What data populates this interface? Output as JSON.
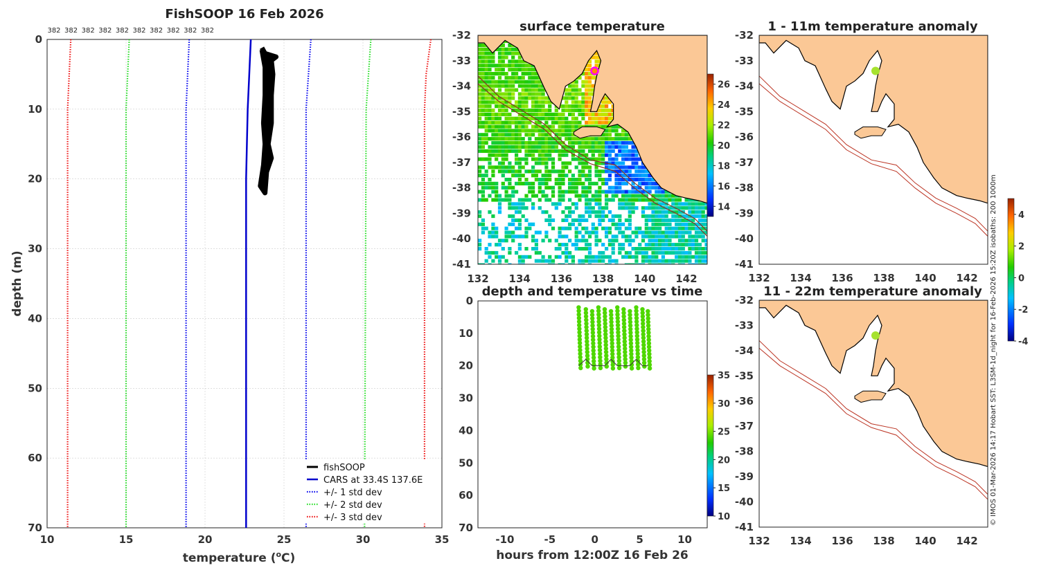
{
  "colors": {
    "land": "#fbc896",
    "fish": "#000000",
    "cars": "#0000cc",
    "std1": "#0000ee",
    "std2": "#22dd22",
    "std3": "#ee1111",
    "marker": "#a6e22e",
    "isobath": "#bb3322",
    "grid": "#cccccc"
  },
  "side_caption": "© IMOS 01-Mar-2026 14:17 Hobart SST: L3SM-1d_night for 16-Feb-2026 15:20Z isobaths: 200  1000m",
  "chart_data": [
    {
      "id": "profile",
      "type": "line",
      "title": "FishSOOP 16 Feb 2026",
      "xlabel": "temperature",
      "xlabel_unit_base": "(",
      "xlabel_unit_sup": "o",
      "xlabel_unit_end": "C)",
      "ylabel": "depth (m)",
      "xlim": [
        10,
        35
      ],
      "ylim": [
        0,
        70
      ],
      "y_inverted": true,
      "xticks": [
        "10",
        "15",
        "20",
        "25",
        "30",
        "35"
      ],
      "yticks": [
        "0",
        "10",
        "20",
        "30",
        "40",
        "50",
        "60",
        "70"
      ],
      "top_counts": [
        "382",
        "382",
        "382",
        "382",
        "382",
        "382",
        "382",
        "382",
        "382",
        "382"
      ],
      "legend": [
        "fishSOOP",
        "CARS at 33.4S 137.6E",
        "+/- 1 std dev",
        "+/- 2 std dev",
        "+/- 3 std dev"
      ],
      "series": [
        {
          "name": "fishSOOP",
          "style": "thick",
          "points": [
            [
              23.6,
              1.2
            ],
            [
              23.8,
              2
            ],
            [
              24.5,
              2.5
            ],
            [
              24.2,
              3
            ],
            [
              24.3,
              5
            ],
            [
              24.2,
              8
            ],
            [
              24.2,
              12
            ],
            [
              24.0,
              15
            ],
            [
              24.2,
              17
            ],
            [
              23.9,
              19
            ],
            [
              23.8,
              22
            ],
            [
              23.5,
              21
            ],
            [
              23.7,
              18
            ],
            [
              23.8,
              15
            ],
            [
              23.7,
              12
            ],
            [
              23.8,
              8
            ],
            [
              23.8,
              4
            ],
            [
              23.6,
              1.5
            ]
          ]
        },
        {
          "name": "CARS at 33.4S 137.6E",
          "style": "solid",
          "points": [
            [
              22.9,
              0
            ],
            [
              22.7,
              10
            ],
            [
              22.6,
              20
            ],
            [
              22.6,
              70
            ]
          ]
        },
        {
          "name": "+/- 1 std dev lower",
          "style": "dot1",
          "points": [
            [
              19.0,
              0
            ],
            [
              18.8,
              10
            ],
            [
              18.8,
              70
            ]
          ]
        },
        {
          "name": "+/- 1 std dev upper",
          "style": "dot1",
          "points": [
            [
              26.7,
              0
            ],
            [
              26.4,
              10
            ],
            [
              26.4,
              70
            ]
          ]
        },
        {
          "name": "+/- 2 std dev lower",
          "style": "dot2",
          "points": [
            [
              15.2,
              0
            ],
            [
              15.0,
              10
            ],
            [
              15.0,
              70
            ]
          ]
        },
        {
          "name": "+/- 2 std dev upper",
          "style": "dot2",
          "points": [
            [
              30.5,
              0
            ],
            [
              30.2,
              10
            ],
            [
              30.1,
              70
            ]
          ]
        },
        {
          "name": "+/- 3 std dev lower",
          "style": "dot3",
          "points": [
            [
              11.5,
              0
            ],
            [
              11.3,
              10
            ],
            [
              11.3,
              70
            ]
          ]
        },
        {
          "name": "+/- 3 std dev upper",
          "style": "dot3",
          "points": [
            [
              34.3,
              0
            ],
            [
              34.0,
              5
            ],
            [
              33.9,
              10
            ],
            [
              33.9,
              70
            ]
          ]
        }
      ]
    },
    {
      "id": "sst",
      "type": "heatmap",
      "title": "surface temperature",
      "xlim": [
        132,
        143
      ],
      "ylim": [
        -41,
        -32
      ],
      "xticks": [
        "132",
        "134",
        "136",
        "138",
        "140",
        "142"
      ],
      "yticks": [
        "-32",
        "-33",
        "-34",
        "-35",
        "-36",
        "-37",
        "-38",
        "-39",
        "-40",
        "-41"
      ],
      "colorbar": {
        "min": 13,
        "max": 27,
        "ticks": [
          "14",
          "16",
          "18",
          "20",
          "22",
          "24",
          "26"
        ]
      },
      "marker": [
        137.6,
        -33.4
      ]
    },
    {
      "id": "time",
      "type": "scatter",
      "title": "depth and temperature vs time",
      "xlabel": "hours from 12:00Z 16 Feb 26",
      "xlim": [
        -13,
        12.5
      ],
      "ylim": [
        0,
        70
      ],
      "y_inverted": true,
      "xticks": [
        "-10",
        "-5",
        "0",
        "5",
        "10"
      ],
      "yticks": [
        "0",
        "10",
        "20",
        "30",
        "40",
        "50",
        "60",
        "70"
      ],
      "colorbar": {
        "min": 10,
        "max": 35,
        "ticks": [
          "10",
          "15",
          "20",
          "25",
          "30",
          "35"
        ]
      },
      "casts": [
        -1.8,
        -1.0,
        -0.3,
        0.4,
        1.1,
        1.8,
        2.5,
        3.2,
        3.9,
        4.6,
        5.3,
        5.9
      ],
      "depth_top": 2,
      "depth_bottom": 20,
      "point_temp": 24
    },
    {
      "id": "anom1",
      "type": "heatmap",
      "title": "1 - 11m temperature anomaly",
      "xlim": [
        132,
        143
      ],
      "ylim": [
        -41,
        -32
      ],
      "xticks": [
        "132",
        "134",
        "136",
        "138",
        "140",
        "142"
      ],
      "yticks": [
        "-32",
        "-33",
        "-34",
        "-35",
        "-36",
        "-37",
        "-38",
        "-39",
        "-40",
        "-41"
      ],
      "marker": [
        137.6,
        -33.4
      ]
    },
    {
      "id": "anom2",
      "type": "heatmap",
      "title": "11 - 22m temperature anomaly",
      "xlim": [
        132,
        143
      ],
      "ylim": [
        -41,
        -32
      ],
      "xticks": [
        "132",
        "134",
        "136",
        "138",
        "140",
        "142"
      ],
      "yticks": [
        "-32",
        "-33",
        "-34",
        "-35",
        "-36",
        "-37",
        "-38",
        "-39",
        "-40",
        "-41"
      ],
      "marker": [
        137.6,
        -33.4
      ]
    },
    {
      "id": "anomcb",
      "type": "colorbar",
      "min": -4,
      "max": 5,
      "ticks": [
        "-4",
        "-2",
        "0",
        "2",
        "4"
      ]
    }
  ]
}
